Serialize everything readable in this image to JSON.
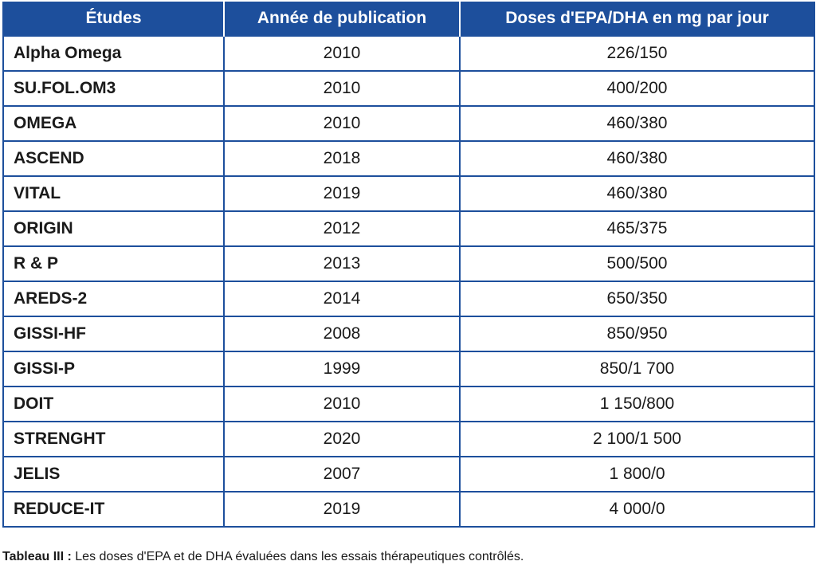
{
  "table": {
    "headers": [
      "Études",
      "Année de publication",
      "Doses d'EPA/DHA en mg par jour"
    ],
    "rows": [
      {
        "study": "Alpha Omega",
        "year": "2010",
        "doses": "226/150"
      },
      {
        "study": "SU.FOL.OM3",
        "year": "2010",
        "doses": "400/200"
      },
      {
        "study": "OMEGA",
        "year": "2010",
        "doses": "460/380"
      },
      {
        "study": "ASCEND",
        "year": "2018",
        "doses": "460/380"
      },
      {
        "study": "VITAL",
        "year": "2019",
        "doses": "460/380"
      },
      {
        "study": "ORIGIN",
        "year": "2012",
        "doses": "465/375"
      },
      {
        "study": "R & P",
        "year": "2013",
        "doses": "500/500"
      },
      {
        "study": "AREDS-2",
        "year": "2014",
        "doses": "650/350"
      },
      {
        "study": "GISSI-HF",
        "year": "2008",
        "doses": "850/950"
      },
      {
        "study": "GISSI-P",
        "year": "1999",
        "doses": "850/1 700"
      },
      {
        "study": "DOIT",
        "year": "2010",
        "doses": "1 150/800"
      },
      {
        "study": "STRENGHT",
        "year": "2020",
        "doses": "2 100/1 500"
      },
      {
        "study": "JELIS",
        "year": "2007",
        "doses": "1 800/0"
      },
      {
        "study": "REDUCE-IT",
        "year": "2019",
        "doses": "4 000/0"
      }
    ]
  },
  "caption": {
    "label": "Tableau III :",
    "text": " Les doses d'EPA et de DHA évaluées dans les essais thérapeutiques contrôlés."
  },
  "colors": {
    "header_bg": "#1d4f9c",
    "border": "#1d4f9c"
  }
}
